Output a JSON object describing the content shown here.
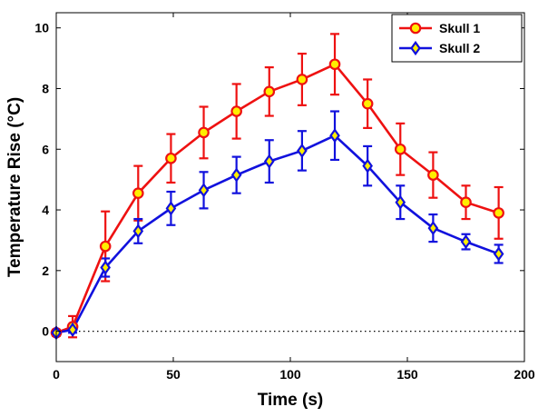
{
  "chart_data": {
    "type": "line",
    "title": "",
    "xlabel": "Time (s)",
    "ylabel": "Temperature Rise (°C)",
    "xlim": [
      0,
      200
    ],
    "ylim": [
      -1,
      10.5
    ],
    "xticks": [
      0,
      50,
      100,
      150,
      200
    ],
    "yticks": [
      0,
      2,
      4,
      6,
      8,
      10
    ],
    "grid": false,
    "legend_position": "top-right",
    "reference_line": {
      "y": 0,
      "style": "dotted"
    },
    "x": [
      0,
      7,
      21,
      35,
      49,
      63,
      77,
      91,
      105,
      119,
      133,
      147,
      161,
      175,
      189
    ],
    "series": [
      {
        "name": "Skull 1",
        "marker": "circle",
        "color": "#ee1111",
        "marker_fill": "#ffee00",
        "values": [
          -0.05,
          0.15,
          2.8,
          4.55,
          5.7,
          6.55,
          7.25,
          7.9,
          8.3,
          8.8,
          7.5,
          6.0,
          5.15,
          4.25,
          3.9
        ],
        "errors": [
          0.1,
          0.35,
          1.15,
          0.9,
          0.8,
          0.85,
          0.9,
          0.8,
          0.85,
          1.0,
          0.8,
          0.85,
          0.75,
          0.55,
          0.85
        ]
      },
      {
        "name": "Skull 2",
        "marker": "diamond",
        "color": "#1111dd",
        "marker_fill": "#ffee00",
        "values": [
          -0.05,
          0.05,
          2.1,
          3.3,
          4.05,
          4.65,
          5.15,
          5.6,
          5.95,
          6.45,
          5.45,
          4.25,
          3.4,
          2.95,
          2.55
        ],
        "errors": [
          0.05,
          0.1,
          0.3,
          0.4,
          0.55,
          0.6,
          0.6,
          0.7,
          0.65,
          0.8,
          0.65,
          0.55,
          0.45,
          0.25,
          0.3
        ]
      }
    ]
  }
}
